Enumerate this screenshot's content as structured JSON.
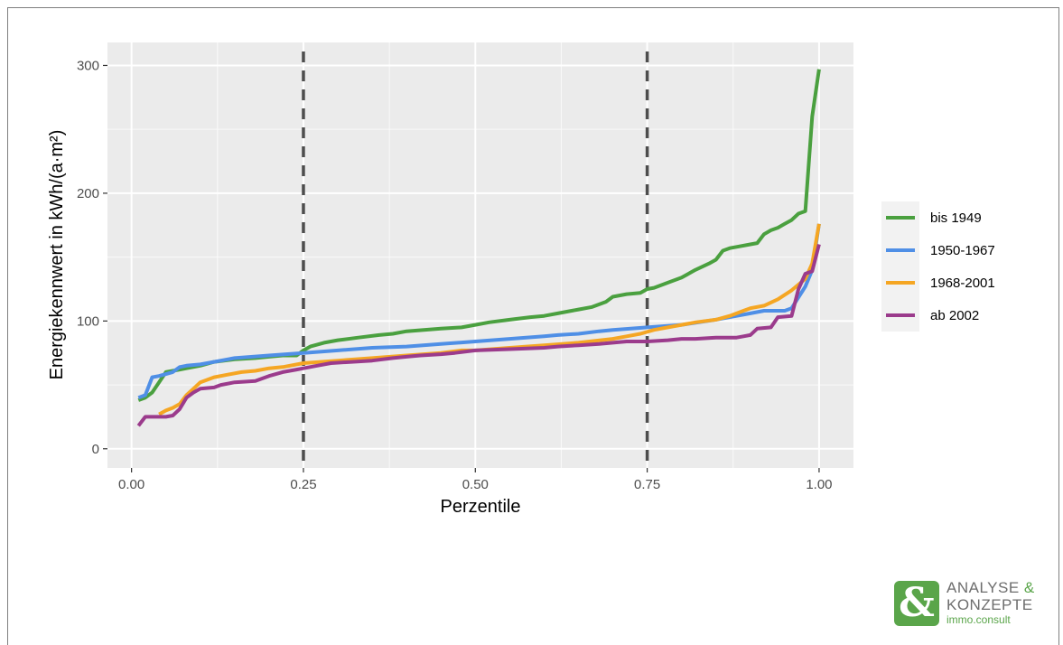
{
  "chart_data": {
    "type": "line",
    "title": "",
    "xlabel": "Perzentile",
    "ylabel": "Energiekennwert in kWh/(a·m²)",
    "xlim": [
      -0.035,
      1.05
    ],
    "ylim": [
      -15,
      318
    ],
    "x_ticks": [
      0.0,
      0.25,
      0.5,
      0.75,
      1.0
    ],
    "x_tick_labels": [
      "0.00",
      "0.25",
      "0.50",
      "0.75",
      "1.00"
    ],
    "y_ticks": [
      0,
      100,
      200,
      300
    ],
    "y_tick_labels": [
      "0",
      "100",
      "200",
      "300"
    ],
    "grid": true,
    "legend_position": "right",
    "vlines": [
      0.25,
      0.75
    ],
    "series": [
      {
        "name": "bis 1949",
        "color": "#4aa03f",
        "points": [
          [
            0.01,
            38
          ],
          [
            0.02,
            40
          ],
          [
            0.03,
            44
          ],
          [
            0.04,
            52
          ],
          [
            0.05,
            60
          ],
          [
            0.06,
            61
          ],
          [
            0.07,
            62
          ],
          [
            0.08,
            63
          ],
          [
            0.1,
            65
          ],
          [
            0.12,
            68
          ],
          [
            0.15,
            70
          ],
          [
            0.18,
            71
          ],
          [
            0.2,
            72
          ],
          [
            0.22,
            73
          ],
          [
            0.24,
            73
          ],
          [
            0.25,
            77
          ],
          [
            0.26,
            80
          ],
          [
            0.28,
            83
          ],
          [
            0.3,
            85
          ],
          [
            0.33,
            87
          ],
          [
            0.36,
            89
          ],
          [
            0.38,
            90
          ],
          [
            0.4,
            92
          ],
          [
            0.45,
            94
          ],
          [
            0.48,
            95
          ],
          [
            0.5,
            97
          ],
          [
            0.52,
            99
          ],
          [
            0.55,
            101
          ],
          [
            0.58,
            103
          ],
          [
            0.6,
            104
          ],
          [
            0.62,
            106
          ],
          [
            0.65,
            109
          ],
          [
            0.67,
            111
          ],
          [
            0.69,
            115
          ],
          [
            0.7,
            119
          ],
          [
            0.72,
            121
          ],
          [
            0.74,
            122
          ],
          [
            0.75,
            125
          ],
          [
            0.76,
            126
          ],
          [
            0.78,
            130
          ],
          [
            0.8,
            134
          ],
          [
            0.82,
            140
          ],
          [
            0.84,
            145
          ],
          [
            0.85,
            148
          ],
          [
            0.86,
            155
          ],
          [
            0.87,
            157
          ],
          [
            0.88,
            158
          ],
          [
            0.9,
            160
          ],
          [
            0.91,
            161
          ],
          [
            0.92,
            168
          ],
          [
            0.93,
            171
          ],
          [
            0.94,
            173
          ],
          [
            0.95,
            176
          ],
          [
            0.96,
            179
          ],
          [
            0.97,
            184
          ],
          [
            0.98,
            186
          ],
          [
            0.99,
            260
          ],
          [
            1.0,
            297
          ]
        ]
      },
      {
        "name": "1950-1967",
        "color": "#4f8fe6",
        "points": [
          [
            0.01,
            40
          ],
          [
            0.02,
            42
          ],
          [
            0.03,
            56
          ],
          [
            0.04,
            57
          ],
          [
            0.06,
            60
          ],
          [
            0.07,
            64
          ],
          [
            0.08,
            65
          ],
          [
            0.1,
            66
          ],
          [
            0.15,
            71
          ],
          [
            0.2,
            73
          ],
          [
            0.25,
            75
          ],
          [
            0.3,
            77
          ],
          [
            0.35,
            79
          ],
          [
            0.4,
            80
          ],
          [
            0.45,
            82
          ],
          [
            0.5,
            84
          ],
          [
            0.55,
            86
          ],
          [
            0.6,
            88
          ],
          [
            0.62,
            89
          ],
          [
            0.65,
            90
          ],
          [
            0.68,
            92
          ],
          [
            0.7,
            93
          ],
          [
            0.75,
            95
          ],
          [
            0.8,
            97
          ],
          [
            0.85,
            101
          ],
          [
            0.88,
            104
          ],
          [
            0.9,
            106
          ],
          [
            0.92,
            108
          ],
          [
            0.95,
            108
          ],
          [
            0.96,
            110
          ],
          [
            0.98,
            127
          ],
          [
            0.99,
            140
          ],
          [
            1.0,
            176
          ]
        ]
      },
      {
        "name": "1968-2001",
        "color": "#f5a623",
        "points": [
          [
            0.04,
            27
          ],
          [
            0.05,
            30
          ],
          [
            0.06,
            32
          ],
          [
            0.07,
            35
          ],
          [
            0.08,
            42
          ],
          [
            0.09,
            47
          ],
          [
            0.1,
            52
          ],
          [
            0.12,
            56
          ],
          [
            0.14,
            58
          ],
          [
            0.16,
            60
          ],
          [
            0.18,
            61
          ],
          [
            0.2,
            63
          ],
          [
            0.22,
            64
          ],
          [
            0.25,
            67
          ],
          [
            0.3,
            69
          ],
          [
            0.35,
            71
          ],
          [
            0.4,
            73
          ],
          [
            0.45,
            75
          ],
          [
            0.48,
            77
          ],
          [
            0.5,
            77
          ],
          [
            0.55,
            79
          ],
          [
            0.6,
            81
          ],
          [
            0.65,
            83
          ],
          [
            0.7,
            86
          ],
          [
            0.72,
            88
          ],
          [
            0.74,
            90
          ],
          [
            0.76,
            93
          ],
          [
            0.78,
            95
          ],
          [
            0.8,
            97
          ],
          [
            0.82,
            99
          ],
          [
            0.85,
            101
          ],
          [
            0.87,
            104
          ],
          [
            0.89,
            108
          ],
          [
            0.9,
            110
          ],
          [
            0.92,
            112
          ],
          [
            0.94,
            117
          ],
          [
            0.96,
            124
          ],
          [
            0.98,
            133
          ],
          [
            0.99,
            145
          ],
          [
            1.0,
            176
          ]
        ]
      },
      {
        "name": "ab 2002",
        "color": "#9b3b8c",
        "points": [
          [
            0.01,
            18
          ],
          [
            0.02,
            25
          ],
          [
            0.05,
            25
          ],
          [
            0.06,
            26
          ],
          [
            0.07,
            31
          ],
          [
            0.08,
            40
          ],
          [
            0.09,
            44
          ],
          [
            0.1,
            47
          ],
          [
            0.12,
            48
          ],
          [
            0.13,
            50
          ],
          [
            0.15,
            52
          ],
          [
            0.18,
            53
          ],
          [
            0.2,
            57
          ],
          [
            0.22,
            60
          ],
          [
            0.24,
            62
          ],
          [
            0.25,
            63
          ],
          [
            0.27,
            65
          ],
          [
            0.29,
            67
          ],
          [
            0.32,
            68
          ],
          [
            0.35,
            69
          ],
          [
            0.38,
            71
          ],
          [
            0.4,
            72
          ],
          [
            0.42,
            73
          ],
          [
            0.45,
            74
          ],
          [
            0.47,
            75
          ],
          [
            0.5,
            77
          ],
          [
            0.55,
            78
          ],
          [
            0.6,
            79
          ],
          [
            0.62,
            80
          ],
          [
            0.65,
            81
          ],
          [
            0.68,
            82
          ],
          [
            0.7,
            83
          ],
          [
            0.72,
            84
          ],
          [
            0.75,
            84
          ],
          [
            0.78,
            85
          ],
          [
            0.8,
            86
          ],
          [
            0.82,
            86
          ],
          [
            0.85,
            87
          ],
          [
            0.88,
            87
          ],
          [
            0.89,
            88
          ],
          [
            0.9,
            89
          ],
          [
            0.91,
            94
          ],
          [
            0.93,
            95
          ],
          [
            0.94,
            103
          ],
          [
            0.96,
            104
          ],
          [
            0.97,
            125
          ],
          [
            0.98,
            137
          ],
          [
            0.99,
            139
          ],
          [
            1.0,
            160
          ]
        ]
      }
    ]
  },
  "logo": {
    "glyph": "&",
    "line1": "ANALYSE",
    "line1_amp": "&",
    "line2": "KONZEPTE",
    "line3": "immo.consult"
  }
}
